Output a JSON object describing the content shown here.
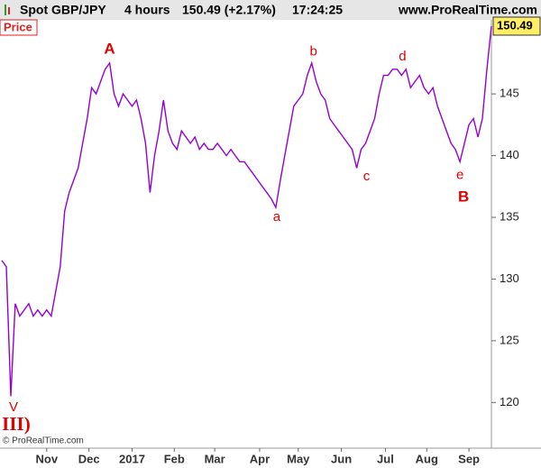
{
  "header": {
    "symbol": "Spot GBP/JPY",
    "timeframe": "4 hours",
    "quote": "150.49 (+2.17%)",
    "time": "17:24:25",
    "site": "www.ProRealTime.com"
  },
  "panel_label": "Price",
  "copyright": "© ProRealTime.com",
  "chart_data": {
    "type": "line",
    "series": [
      {
        "name": "Price",
        "color": "#9400d3",
        "values": [
          131.5,
          131,
          120.5,
          128,
          127,
          127.5,
          128,
          127,
          127.5,
          127,
          127.5,
          127,
          129,
          131,
          135.5,
          137,
          138,
          139,
          141,
          143,
          145.5,
          145,
          146,
          147,
          147.5,
          145,
          144,
          145,
          144.5,
          144,
          144.5,
          143,
          141,
          137,
          140,
          142,
          144.5,
          142,
          141,
          140.5,
          142,
          141.5,
          141,
          141.5,
          140.5,
          141,
          140.5,
          140.5,
          141,
          140.5,
          140,
          140.5,
          140,
          139.5,
          139.5,
          139,
          138.5,
          138,
          137.5,
          137,
          136.5,
          135.8,
          138,
          140,
          142,
          144,
          144.5,
          145,
          146.5,
          147.5,
          146,
          145,
          144.5,
          143,
          142.5,
          142,
          141.5,
          141,
          140.5,
          139,
          140.5,
          141,
          142,
          143,
          145,
          146.5,
          146.5,
          147,
          147,
          146.5,
          147,
          145.5,
          146,
          146.5,
          145.5,
          145,
          145.5,
          144,
          143,
          142,
          141,
          140.5,
          139.5,
          141,
          142.5,
          143,
          141.5,
          143,
          147,
          150.49
        ]
      }
    ],
    "xlim": [
      0,
      109
    ],
    "xticks": [
      {
        "value": 10,
        "label": "Nov"
      },
      {
        "value": 19.4,
        "label": "Dec"
      },
      {
        "value": 29,
        "label": "2017"
      },
      {
        "value": 38.4,
        "label": "Feb"
      },
      {
        "value": 47.4,
        "label": "Mar"
      },
      {
        "value": 57.4,
        "label": "Apr"
      },
      {
        "value": 66,
        "label": "May"
      },
      {
        "value": 75.6,
        "label": "Jun"
      },
      {
        "value": 85.4,
        "label": "Jul"
      },
      {
        "value": 94.6,
        "label": "Aug"
      },
      {
        "value": 104,
        "label": "Sep"
      }
    ],
    "ylim": [
      116.3,
      151
    ],
    "yticks": [
      120,
      125,
      130,
      135,
      140,
      145
    ],
    "last_value_color": "#ffee66",
    "annotations": [
      {
        "text": "A",
        "x": 24,
        "y": 148.6,
        "style": "major"
      },
      {
        "text": "a",
        "x": 61.2,
        "y": 135,
        "style": "minor"
      },
      {
        "text": "b",
        "x": 69.4,
        "y": 148.4,
        "style": "minor"
      },
      {
        "text": "c",
        "x": 81.2,
        "y": 138.3,
        "style": "minor"
      },
      {
        "text": "d",
        "x": 89.2,
        "y": 148,
        "style": "minor"
      },
      {
        "text": "e",
        "x": 102,
        "y": 138.4,
        "style": "minor"
      },
      {
        "text": "B",
        "x": 102.8,
        "y": 136.6,
        "style": "major"
      },
      {
        "text": "V",
        "x": 2.6,
        "y": 119.6,
        "style": "minor"
      },
      {
        "text": "III)",
        "x": 3.2,
        "y": 118.1,
        "style": "wave"
      }
    ]
  }
}
